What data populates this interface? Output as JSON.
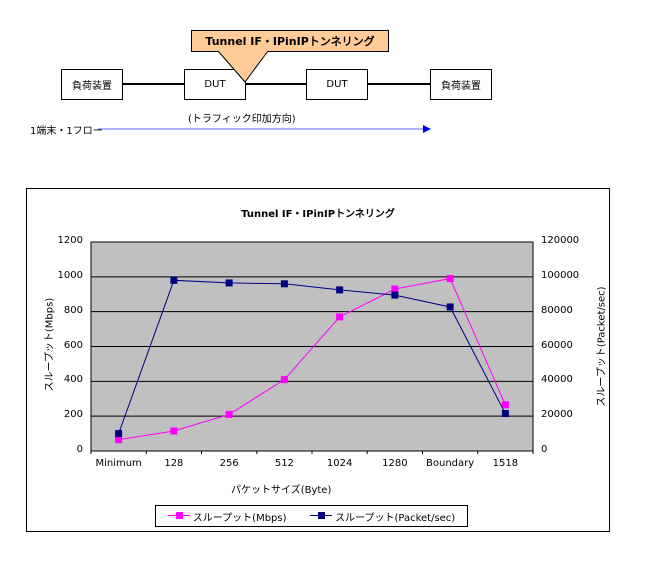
{
  "diagram": {
    "callout": "Tunnel IF・IPinIPトンネリング",
    "callout_color": "#FFCC99",
    "nodes": [
      {
        "label": "負荷装置"
      },
      {
        "label": "DUT"
      },
      {
        "label": "DUT"
      },
      {
        "label": "負荷装置"
      }
    ],
    "flow_label": "1端末・1フロー",
    "direction_label": "(トラフィック印加方向)",
    "arrow_color": "#0000FF"
  },
  "chart_data": {
    "type": "line",
    "title": "Tunnel IF・IPinIPトンネリング",
    "xlabel": "パケットサイズ(Byte)",
    "ylabel": "スループット(Mbps)",
    "y2label": "スループット(Packet/sec)",
    "categories": [
      "Minimum",
      "128",
      "256",
      "512",
      "1024",
      "1280",
      "Boundary",
      "1518"
    ],
    "ylim": [
      0,
      1200
    ],
    "y2lim": [
      0,
      120000
    ],
    "yticks": [
      "0",
      "200",
      "400",
      "600",
      "800",
      "1000",
      "1200"
    ],
    "y2ticks": [
      "0",
      "20000",
      "40000",
      "60000",
      "80000",
      "100000",
      "120000"
    ],
    "grid": true,
    "plot_background": "#C0C0C0",
    "legend_position": "bottom",
    "series": [
      {
        "name": "スループット(Mbps)",
        "axis": "left",
        "color": "#FF00FF",
        "values": [
          65,
          115,
          210,
          410,
          770,
          930,
          990,
          265
        ]
      },
      {
        "name": "スループット(Packet/sec)",
        "axis": "right",
        "color": "#000080",
        "values": [
          10000,
          98000,
          96500,
          96000,
          92500,
          89500,
          82700,
          21500
        ]
      }
    ]
  }
}
